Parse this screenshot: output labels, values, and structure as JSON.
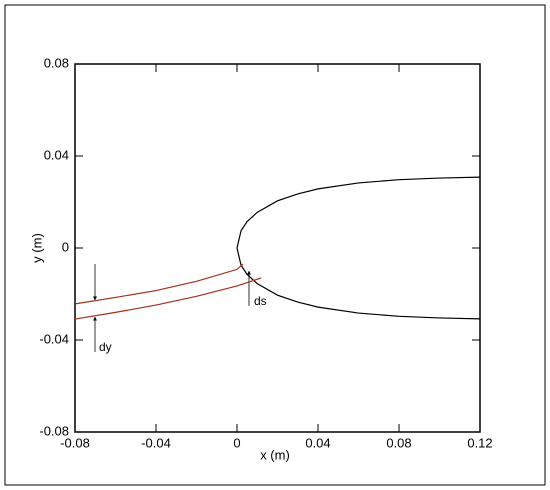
{
  "chart_data": {
    "type": "line",
    "xlabel": "x (m)",
    "ylabel": "y (m)",
    "xlim": [
      -0.08,
      0.12
    ],
    "xticks": [
      -0.08,
      -0.04,
      0,
      0.04,
      0.08,
      0.12
    ],
    "ylim": [
      -0.08,
      0.08
    ],
    "yticks": [
      -0.08,
      -0.04,
      0,
      0.04,
      0.08
    ],
    "grid": false,
    "series": [
      {
        "color": "#000000",
        "x": [
          0.12,
          0.1,
          0.08,
          0.06,
          0.04,
          0.03,
          0.02,
          0.01,
          0.005,
          0.002,
          0,
          0.002,
          0.005,
          0.01,
          0.02,
          0.03,
          0.04,
          0.06,
          0.08,
          0.1,
          0.12
        ],
        "values": [
          0.0308,
          0.0304,
          0.0297,
          0.0283,
          0.0257,
          0.0235,
          0.0205,
          0.0155,
          0.0115,
          0.0075,
          0,
          -0.0075,
          -0.0115,
          -0.0155,
          -0.0205,
          -0.0235,
          -0.0257,
          -0.0283,
          -0.0297,
          -0.0304,
          -0.0308
        ]
      },
      {
        "color": "#a0301c",
        "x": [
          -0.08,
          -0.06,
          -0.04,
          -0.02,
          0,
          0.003
        ],
        "values": [
          -0.0243,
          -0.0215,
          -0.0185,
          -0.0145,
          -0.0093,
          -0.007
        ]
      },
      {
        "color": "#a0301c",
        "x": [
          -0.08,
          -0.06,
          -0.04,
          -0.02,
          0,
          0.012
        ],
        "values": [
          -0.0309,
          -0.028,
          -0.0248,
          -0.021,
          -0.0165,
          -0.013
        ]
      }
    ],
    "annotations": [
      "dy",
      "ds"
    ]
  }
}
